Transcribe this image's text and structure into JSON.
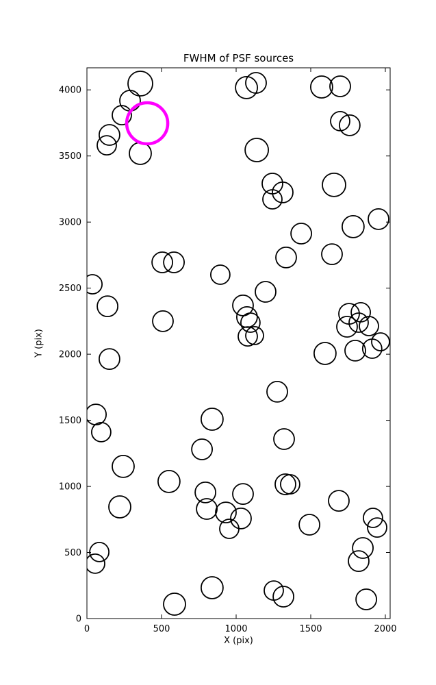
{
  "chart_data": {
    "type": "scatter",
    "title": "FWHM of PSF sources",
    "xlabel": "X (pix)",
    "ylabel": "Y (pix)",
    "xlim": [
      0,
      2032
    ],
    "ylim": [
      0,
      4167
    ],
    "xticks": [
      0,
      500,
      1000,
      1500,
      2000
    ],
    "yticks": [
      0,
      500,
      1000,
      1500,
      2000,
      2500,
      3000,
      3500,
      4000
    ],
    "grid": false,
    "legend": "none",
    "marker_color": "#000000",
    "marker_linewidth": 1.8,
    "points_format": "x, y, marker_radius_px",
    "points": [
      [
        358,
        4048,
        18
      ],
      [
        289,
        3918,
        15
      ],
      [
        1069,
        4017,
        16
      ],
      [
        1133,
        4053,
        15
      ],
      [
        1573,
        4022,
        16
      ],
      [
        1697,
        4027,
        15
      ],
      [
        234,
        3809,
        14
      ],
      [
        151,
        3659,
        15
      ],
      [
        133,
        3581,
        14
      ],
      [
        358,
        3519,
        16
      ],
      [
        1697,
        3763,
        14
      ],
      [
        1761,
        3732,
        15
      ],
      [
        1138,
        3545,
        17
      ],
      [
        1243,
        3291,
        15
      ],
      [
        1312,
        3224,
        15
      ],
      [
        1243,
        3172,
        14
      ],
      [
        1656,
        3281,
        17
      ],
      [
        1954,
        3022,
        15
      ],
      [
        1784,
        2965,
        16
      ],
      [
        1436,
        2913,
        15
      ],
      [
        1642,
        2757,
        15
      ],
      [
        1335,
        2732,
        15
      ],
      [
        505,
        2695,
        15
      ],
      [
        583,
        2695,
        15
      ],
      [
        894,
        2602,
        14
      ],
      [
        37,
        2529,
        14
      ],
      [
        138,
        2363,
        15
      ],
      [
        1197,
        2472,
        15
      ],
      [
        1046,
        2369,
        15
      ],
      [
        1073,
        2281,
        15
      ],
      [
        1096,
        2239,
        14
      ],
      [
        1078,
        2135,
        14
      ],
      [
        1124,
        2141,
        13
      ],
      [
        509,
        2250,
        15
      ],
      [
        1757,
        2306,
        15
      ],
      [
        1835,
        2317,
        14
      ],
      [
        1743,
        2208,
        15
      ],
      [
        1821,
        2239,
        14
      ],
      [
        1890,
        2213,
        14
      ],
      [
        1596,
        2006,
        16
      ],
      [
        1798,
        2027,
        15
      ],
      [
        1912,
        2042,
        14
      ],
      [
        1968,
        2094,
        13
      ],
      [
        151,
        1964,
        15
      ],
      [
        1275,
        1716,
        15
      ],
      [
        60,
        1544,
        15
      ],
      [
        96,
        1410,
        14
      ],
      [
        839,
        1508,
        16
      ],
      [
        1321,
        1358,
        15
      ],
      [
        771,
        1280,
        15
      ],
      [
        243,
        1151,
        16
      ],
      [
        550,
        1037,
        16
      ],
      [
        1330,
        1016,
        15
      ],
      [
        1362,
        1016,
        14
      ],
      [
        794,
        954,
        15
      ],
      [
        1046,
        943,
        15
      ],
      [
        220,
        845,
        16
      ],
      [
        803,
        829,
        15
      ],
      [
        931,
        803,
        15
      ],
      [
        1032,
        757,
        15
      ],
      [
        954,
        679,
        14
      ],
      [
        1688,
        891,
        15
      ],
      [
        1491,
        710,
        15
      ],
      [
        1917,
        762,
        14
      ],
      [
        1945,
        689,
        14
      ],
      [
        1849,
        534,
        15
      ],
      [
        1821,
        435,
        15
      ],
      [
        83,
        503,
        14
      ],
      [
        55,
        415,
        14
      ],
      [
        839,
        233,
        16
      ],
      [
        1252,
        212,
        14
      ],
      [
        1317,
        166,
        15
      ],
      [
        587,
        109,
        16
      ],
      [
        1872,
        145,
        15
      ]
    ],
    "highlight": {
      "x": 404,
      "y": 3747,
      "r": 30,
      "color": "#ff00ff",
      "linewidth": 4.5,
      "meaning": "highlighted PSF source"
    }
  }
}
